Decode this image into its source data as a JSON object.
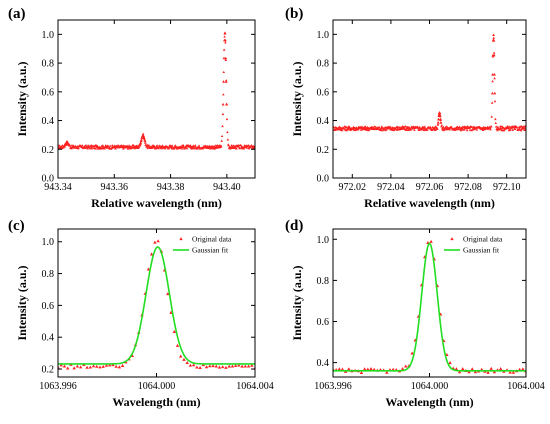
{
  "colors": {
    "data": "#ff2020",
    "fit": "#22dd22",
    "axis": "#000000"
  },
  "chart_data": [
    {
      "panel": "(a)",
      "type": "scatter",
      "xlabel": "Relative wavelength (nm)",
      "ylabel": "Intensity (a.u.)",
      "xlim": [
        943.34,
        943.41
      ],
      "ylim": [
        0.0,
        1.1
      ],
      "xticks": [
        943.34,
        943.36,
        943.38,
        943.4
      ],
      "xtick_labels": [
        "943.34",
        "943.36",
        "943.38",
        "943.40"
      ],
      "yticks": [
        0.0,
        0.2,
        0.4,
        0.6,
        0.8,
        1.0
      ],
      "ytick_labels": [
        "0.0",
        "0.2",
        "0.4",
        "0.6",
        "0.8",
        "1.0"
      ],
      "series": [
        {
          "style": "dense-red-markers",
          "baseline": 0.215,
          "noise": 0.012,
          "peaks": [
            {
              "x": 943.3432,
              "amp": 0.03,
              "width": 0.0006
            },
            {
              "x": 943.3702,
              "amp": 0.08,
              "width": 0.0006
            },
            {
              "x": 943.3993,
              "amp": 0.79,
              "width": 0.00045
            }
          ]
        }
      ]
    },
    {
      "panel": "(b)",
      "type": "scatter",
      "xlabel": "Relative wavelength (nm)",
      "ylabel": "Intensity (a.u.)",
      "xlim": [
        972.01,
        972.11
      ],
      "ylim": [
        0.0,
        1.1
      ],
      "xticks": [
        972.02,
        972.04,
        972.06,
        972.08,
        972.1
      ],
      "xtick_labels": [
        "972.02",
        "972.04",
        "972.06",
        "972.08",
        "972.10"
      ],
      "yticks": [
        0.0,
        0.2,
        0.4,
        0.6,
        0.8,
        1.0
      ],
      "ytick_labels": [
        "0.0",
        "0.2",
        "0.4",
        "0.6",
        "0.8",
        "1.0"
      ],
      "series": [
        {
          "style": "dense-red-markers",
          "baseline": 0.345,
          "noise": 0.014,
          "peaks": [
            {
              "x": 972.0652,
              "amp": 0.11,
              "width": 0.0005
            },
            {
              "x": 972.0932,
              "amp": 0.65,
              "width": 0.00045
            }
          ]
        }
      ]
    },
    {
      "panel": "(c)",
      "type": "scatter+line",
      "xlabel": "Wavelength (nm)",
      "ylabel": "Intensity (a.u.)",
      "xlim": [
        1063.996,
        1064.004
      ],
      "ylim": [
        0.15,
        1.08
      ],
      "xticks": [
        1063.996,
        1064.0,
        1064.004
      ],
      "xtick_labels": [
        "1063.996",
        "1064.000",
        "1064.004"
      ],
      "yticks": [
        0.2,
        0.4,
        0.6,
        0.8,
        1.0
      ],
      "ytick_labels": [
        "0.2",
        "0.4",
        "0.6",
        "0.8",
        "1.0"
      ],
      "legend": {
        "position": "top-right",
        "entries": [
          "Original data",
          "Gaussian fit"
        ]
      },
      "series": [
        {
          "name": "Original data",
          "style": "red-markers",
          "x_start": 1063.996,
          "x_end": 1064.004,
          "count": 62,
          "baseline": 0.215,
          "amp": 0.785,
          "center": 1064.0,
          "sigma": 0.00045,
          "noise": 0.012
        },
        {
          "name": "Gaussian fit",
          "style": "green-line",
          "baseline": 0.232,
          "amp": 0.735,
          "center": 1064.00005,
          "sigma": 0.00047
        }
      ]
    },
    {
      "panel": "(d)",
      "type": "scatter+line",
      "xlabel": "Wavelength (nm)",
      "ylabel": "Intensity (a.u.)",
      "xlim": [
        1063.996,
        1064.004
      ],
      "ylim": [
        0.33,
        1.05
      ],
      "xticks": [
        1063.996,
        1064.0,
        1064.004
      ],
      "xtick_labels": [
        "1063.996",
        "1064.000",
        "1064.004"
      ],
      "yticks": [
        0.4,
        0.6,
        0.8,
        1.0
      ],
      "ytick_labels": [
        "0.4",
        "0.6",
        "0.8",
        "1.0"
      ],
      "legend": {
        "position": "top-right",
        "entries": [
          "Original data",
          "Gaussian fit"
        ]
      },
      "series": [
        {
          "name": "Original data",
          "style": "red-markers",
          "x_start": 1063.996,
          "x_end": 1064.004,
          "count": 62,
          "baseline": 0.36,
          "amp": 0.64,
          "center": 1064.0,
          "sigma": 0.00035,
          "noise": 0.01
        },
        {
          "name": "Gaussian fit",
          "style": "green-line",
          "baseline": 0.36,
          "amp": 0.62,
          "center": 1064.0,
          "sigma": 0.00032
        }
      ]
    }
  ]
}
